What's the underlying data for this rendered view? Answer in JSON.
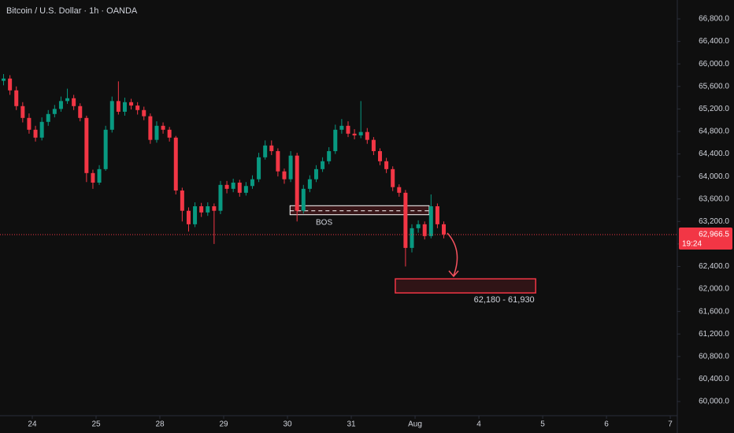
{
  "chart_data": {
    "type": "candlestick",
    "title": "Bitcoin / U.S. Dollar · 1h · OANDA",
    "up_color": "#089981",
    "down_color": "#f23645",
    "x": [
      -0.45,
      -0.35,
      -0.25,
      -0.15,
      -0.05,
      0.05,
      0.15,
      0.25,
      0.35,
      0.45,
      0.55,
      0.65,
      0.75,
      0.85,
      0.95,
      1.05,
      1.15,
      1.25,
      1.35,
      1.45,
      1.55,
      1.65,
      1.75,
      1.85,
      1.95,
      2.05,
      2.15,
      2.25,
      2.35,
      2.45,
      2.55,
      2.65,
      2.75,
      2.85,
      2.95,
      3.05,
      3.15,
      3.25,
      3.35,
      3.45,
      3.55,
      3.65,
      3.75,
      3.85,
      3.95,
      4.05,
      4.15,
      4.25,
      4.35,
      4.45,
      4.55,
      4.65,
      4.75,
      4.85,
      4.95,
      5.05,
      5.15,
      5.25,
      5.35,
      5.45,
      5.55,
      5.65,
      5.75,
      5.85,
      5.95,
      6.05,
      6.15,
      6.25,
      6.35,
      6.45
    ],
    "open": [
      65700,
      65740,
      65530,
      65250,
      65040,
      64830,
      64690,
      64970,
      65110,
      65200,
      65340,
      65390,
      65250,
      65040,
      64060,
      63890,
      64130,
      64830,
      65340,
      65150,
      65320,
      65260,
      65180,
      65070,
      64650,
      64900,
      64830,
      64690,
      63750,
      63390,
      63150,
      63470,
      63360,
      63470,
      63390,
      63850,
      63780,
      63890,
      63710,
      63830,
      63950,
      64340,
      64550,
      64450,
      64090,
      63950,
      64370,
      63390,
      63780,
      63950,
      64130,
      64270,
      64450,
      64830,
      64900,
      64760,
      64730,
      64790,
      64650,
      64450,
      64270,
      64130,
      63810,
      63710,
      62730,
      63080,
      63150,
      62940,
      63470,
      63150
    ],
    "high": [
      65820,
      65800,
      65600,
      65320,
      65120,
      64900,
      65050,
      65180,
      65270,
      65420,
      65560,
      65450,
      65300,
      65080,
      64120,
      64200,
      64900,
      65420,
      65690,
      65400,
      65380,
      65320,
      65240,
      65120,
      64980,
      64960,
      64880,
      64720,
      63800,
      63450,
      63540,
      63530,
      63540,
      63520,
      63920,
      63920,
      63960,
      63940,
      63900,
      64020,
      64420,
      64640,
      64640,
      64500,
      64140,
      64450,
      64420,
      63850,
      64020,
      64200,
      64340,
      64520,
      64920,
      65020,
      64980,
      64840,
      65340,
      64860,
      64700,
      64500,
      64330,
      64180,
      63860,
      63760,
      63150,
      63220,
      63200,
      63680,
      63520,
      63200
    ],
    "low": [
      65620,
      65450,
      65180,
      64960,
      64760,
      64620,
      64640,
      64900,
      65050,
      65150,
      65290,
      65180,
      64980,
      63900,
      63780,
      63850,
      64100,
      64780,
      65100,
      65080,
      65190,
      65100,
      65000,
      64580,
      64600,
      64760,
      64620,
      63680,
      63200,
      63020,
      63100,
      63280,
      63300,
      62800,
      63330,
      63700,
      63720,
      63640,
      63660,
      63780,
      63900,
      64300,
      64380,
      64000,
      63870,
      63900,
      63200,
      63340,
      63720,
      63900,
      64080,
      64220,
      64400,
      64760,
      64700,
      64660,
      64680,
      64580,
      64380,
      64200,
      64060,
      63740,
      63640,
      62400,
      62650,
      63000,
      62880,
      62900,
      63080,
      62900
    ],
    "close": [
      65740,
      65530,
      65250,
      65040,
      64830,
      64690,
      64970,
      65110,
      65200,
      65340,
      65390,
      65250,
      65040,
      64060,
      63890,
      64130,
      64830,
      65340,
      65150,
      65320,
      65260,
      65180,
      65070,
      64650,
      64900,
      64830,
      64690,
      63750,
      63390,
      63150,
      63470,
      63360,
      63470,
      63390,
      63850,
      63780,
      63890,
      63710,
      63830,
      63950,
      64340,
      64550,
      64450,
      64090,
      63950,
      64370,
      63390,
      63780,
      63950,
      64130,
      64270,
      64450,
      64830,
      64900,
      64760,
      64730,
      64790,
      64650,
      64450,
      64270,
      64130,
      63810,
      63710,
      62730,
      63080,
      63150,
      62940,
      63470,
      63150,
      62970
    ],
    "xlim": [
      -0.506,
      10.11
    ],
    "xticks": [
      {
        "value": 0,
        "label": "24"
      },
      {
        "value": 1,
        "label": "25"
      },
      {
        "value": 2,
        "label": "28"
      },
      {
        "value": 3,
        "label": "29"
      },
      {
        "value": 4,
        "label": "30"
      },
      {
        "value": 5,
        "label": "31"
      },
      {
        "value": 6,
        "label": "Aug"
      },
      {
        "value": 7,
        "label": "4"
      },
      {
        "value": 8,
        "label": "5"
      },
      {
        "value": 9,
        "label": "6"
      },
      {
        "value": 10,
        "label": "7"
      }
    ],
    "ylim": [
      59748,
      67136
    ],
    "yticks": [
      {
        "value": 60000,
        "label": "60,000.0"
      },
      {
        "value": 60400,
        "label": "60,400.0"
      },
      {
        "value": 60800,
        "label": "60,800.0"
      },
      {
        "value": 61200,
        "label": "61,200.0"
      },
      {
        "value": 61600,
        "label": "61,600.0"
      },
      {
        "value": 62000,
        "label": "62,000.0"
      },
      {
        "value": 62400,
        "label": "62,400.0"
      },
      {
        "value": 62800,
        "label": "62,800.0"
      },
      {
        "value": 63200,
        "label": "63,200.0"
      },
      {
        "value": 63600,
        "label": "63,600.0"
      },
      {
        "value": 64000,
        "label": "64,000.0"
      },
      {
        "value": 64400,
        "label": "64,400.0"
      },
      {
        "value": 64800,
        "label": "64,800.0"
      },
      {
        "value": 65200,
        "label": "65,200.0"
      },
      {
        "value": 65600,
        "label": "65,600.0"
      },
      {
        "value": 66000,
        "label": "66,000.0"
      },
      {
        "value": 66400,
        "label": "66,400.0"
      },
      {
        "value": 66800,
        "label": "66,800.0"
      }
    ],
    "last_price": {
      "value": 62966.5,
      "label": "62,966.5"
    },
    "countdown": "19:24",
    "bos_zone": {
      "label": "BOS",
      "top": 63480,
      "middle": 63390,
      "bottom": 63320,
      "x": [
        4.04,
        6.22
      ]
    },
    "target_zone": {
      "label": "62,180 - 61,930",
      "top": 62180,
      "bottom": 61930,
      "x": [
        5.69,
        7.89
      ]
    }
  }
}
